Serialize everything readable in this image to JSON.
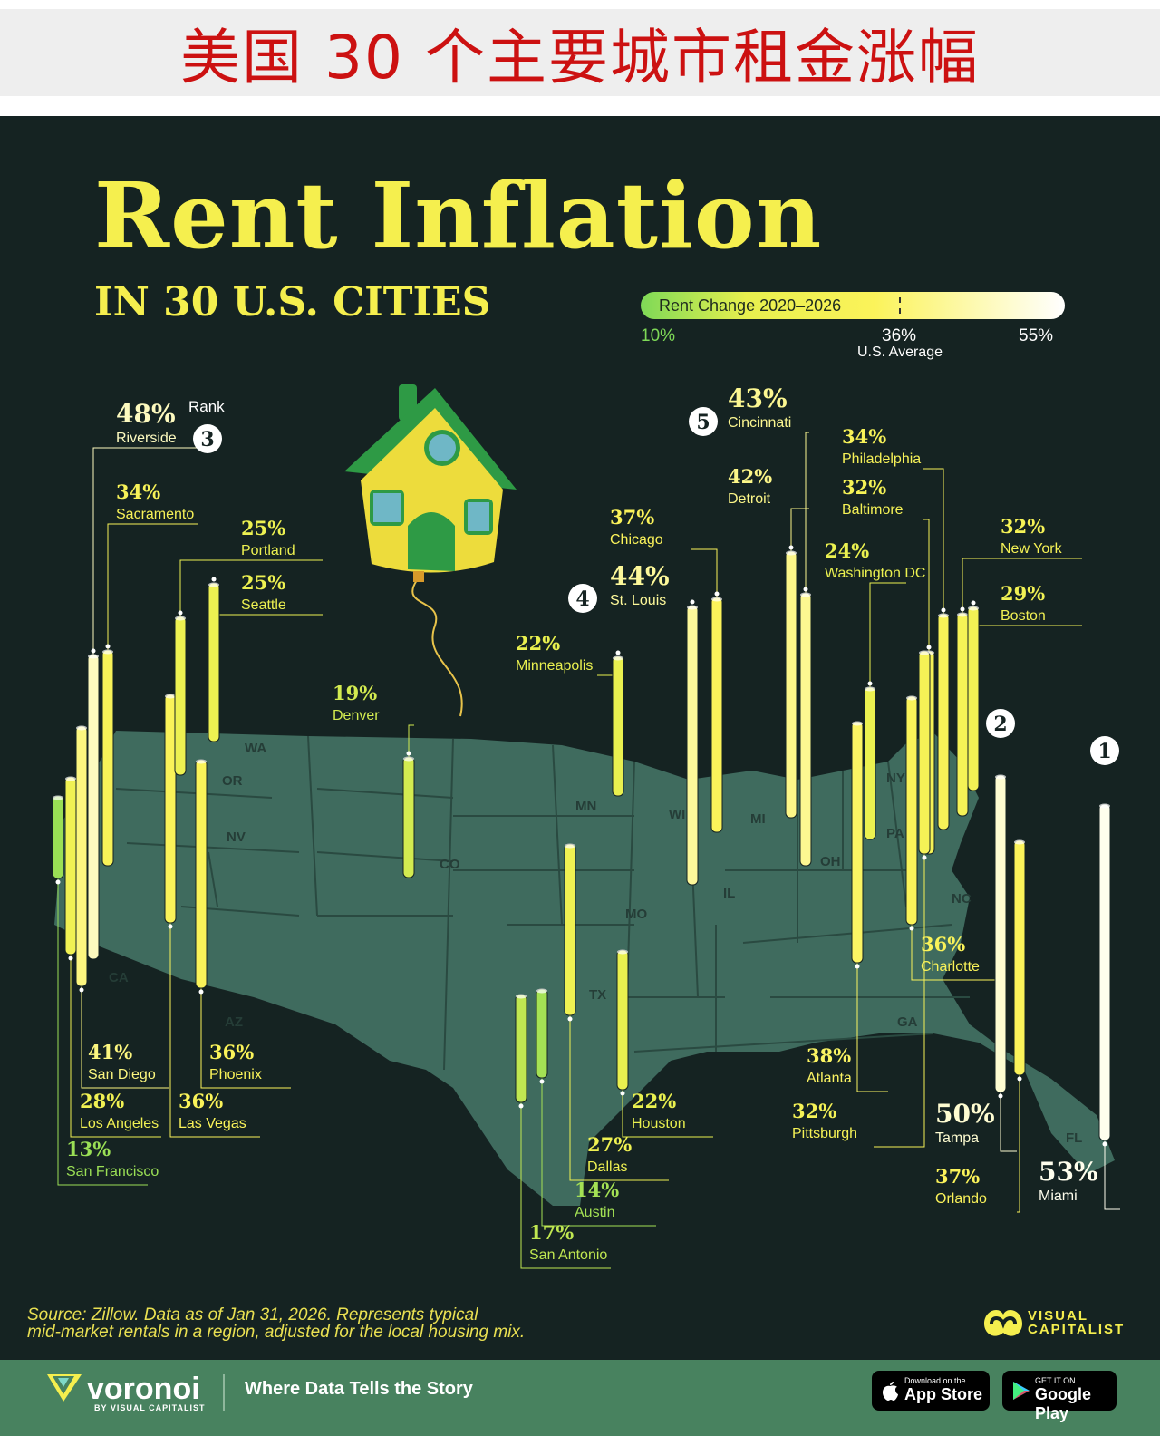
{
  "banner": {
    "text": "美国 30 个主要城市租金涨幅"
  },
  "title": "Rent Inflation",
  "subtitle": "IN 30 U.S. CITIES",
  "legend": {
    "label": "Rent Change 2020–2026",
    "min": "10%",
    "avg": "36%",
    "avg_label": "U.S. Average",
    "max": "55%"
  },
  "rank_header": "Rank",
  "chart_data": {
    "type": "map-bar",
    "title": "Rent Inflation in 30 U.S. Cities",
    "value_label": "Rent Change 2020–2026 (%)",
    "color_scale": {
      "min": 10,
      "average": 36,
      "max": 55
    },
    "cities": [
      {
        "name": "Miami",
        "value": 53,
        "rank": 1
      },
      {
        "name": "Tampa",
        "value": 50,
        "rank": 2
      },
      {
        "name": "Riverside",
        "value": 48,
        "rank": 3
      },
      {
        "name": "St. Louis",
        "value": 44,
        "rank": 4
      },
      {
        "name": "Cincinnati",
        "value": 43,
        "rank": 5
      },
      {
        "name": "Detroit",
        "value": 42
      },
      {
        "name": "San Diego",
        "value": 41
      },
      {
        "name": "Atlanta",
        "value": 38
      },
      {
        "name": "Chicago",
        "value": 37
      },
      {
        "name": "Orlando",
        "value": 37
      },
      {
        "name": "Phoenix",
        "value": 36
      },
      {
        "name": "Las Vegas",
        "value": 36
      },
      {
        "name": "Charlotte",
        "value": 36
      },
      {
        "name": "Sacramento",
        "value": 34
      },
      {
        "name": "Philadelphia",
        "value": 34
      },
      {
        "name": "Baltimore",
        "value": 32
      },
      {
        "name": "New York",
        "value": 32
      },
      {
        "name": "Pittsburgh",
        "value": 32
      },
      {
        "name": "Boston",
        "value": 29
      },
      {
        "name": "Los Angeles",
        "value": 28
      },
      {
        "name": "Dallas",
        "value": 27
      },
      {
        "name": "Portland",
        "value": 25
      },
      {
        "name": "Seattle",
        "value": 25
      },
      {
        "name": "Washington DC",
        "value": 24
      },
      {
        "name": "Minneapolis",
        "value": 22
      },
      {
        "name": "Houston",
        "value": 22
      },
      {
        "name": "Denver",
        "value": 19
      },
      {
        "name": "San Antonio",
        "value": 17
      },
      {
        "name": "Austin",
        "value": 14
      },
      {
        "name": "San Francisco",
        "value": 13
      }
    ]
  },
  "states": [
    "WA",
    "OR",
    "NV",
    "CA",
    "AZ",
    "CO",
    "MN",
    "WI",
    "MI",
    "IL",
    "MO",
    "TX",
    "OH",
    "PA",
    "NY",
    "NC",
    "GA",
    "FL"
  ],
  "source": {
    "line1": "Source: Zillow. Data as of Jan 31, 2026. Represents typical",
    "line2": "mid-market rentals in a region, adjusted for the local housing mix."
  },
  "brand": {
    "vc_line1": "VISUAL",
    "vc_line2": "CAPITALIST"
  },
  "footer": {
    "logo": "voronoi",
    "logo_sub": "BY VISUAL CAPITALIST",
    "tagline": "Where Data Tells the Story",
    "appstore_small": "Download on the",
    "appstore": "App Store",
    "googleplay_small": "GET IT ON",
    "googleplay": "Google Play"
  },
  "colors": {
    "banner_red": "#cc1111",
    "title_yellow": "#f5ef4e",
    "map": "#3f6b5e",
    "bg": "#152322",
    "footer": "#48825f"
  }
}
